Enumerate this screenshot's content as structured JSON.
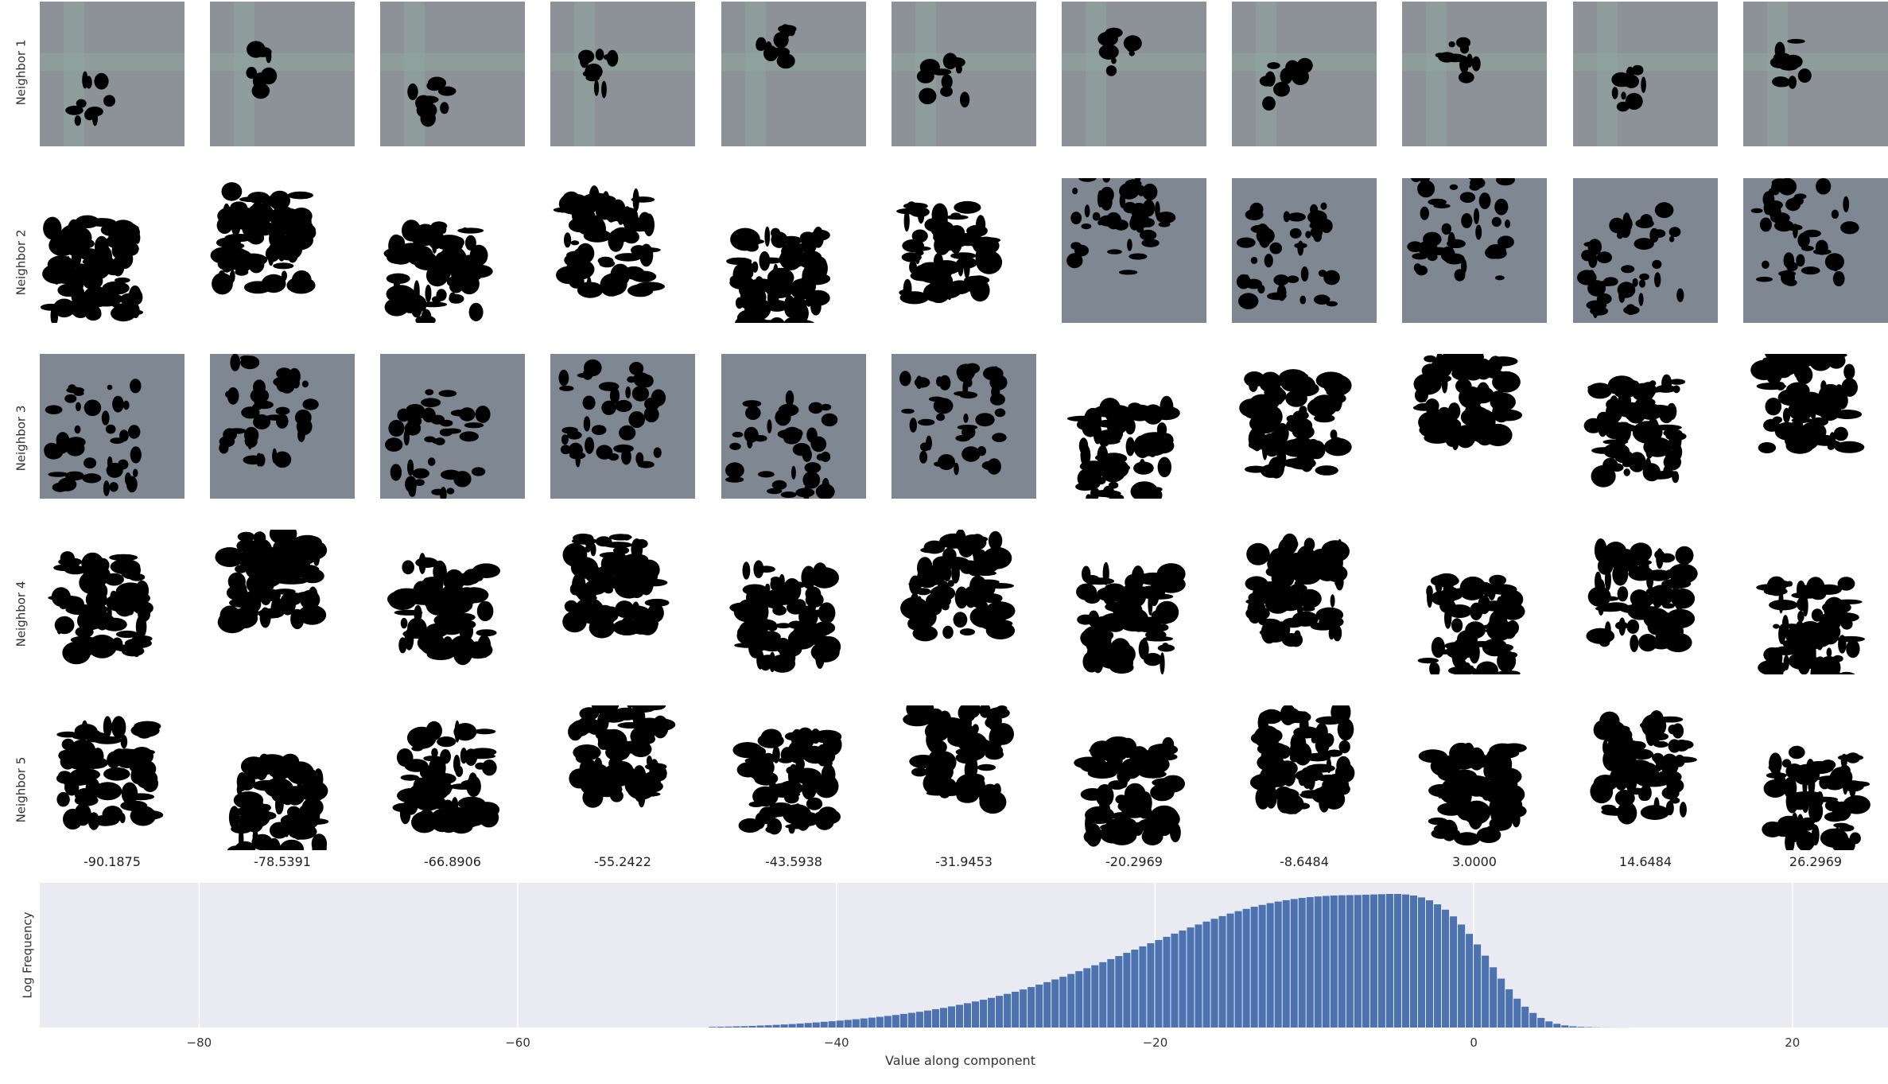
{
  "figure": {
    "row_labels": [
      "Neighbor 1",
      "Neighbor 2",
      "Neighbor 3",
      "Neighbor 4",
      "Neighbor 5"
    ],
    "column_values": [
      "-90.1875",
      "-78.5391",
      "-66.8906",
      "-55.2422",
      "-43.5938",
      "-31.9453",
      "-20.2969",
      "-8.6484",
      "3.0000",
      "14.6484",
      "26.2969"
    ],
    "tile_backgrounds": {
      "gray_road": "#8c9297",
      "gray_asphalt": "#7f8793",
      "white": "#ffffff",
      "mask": "#000000"
    },
    "tile_types": [
      [
        "road",
        "road",
        "road",
        "road",
        "road",
        "road",
        "road",
        "road",
        "road",
        "road",
        "road"
      ],
      [
        "white",
        "white",
        "white",
        "white",
        "white",
        "white",
        "asphalt",
        "asphalt",
        "asphalt",
        "asphalt",
        "asphalt"
      ],
      [
        "asphalt",
        "asphalt",
        "asphalt",
        "asphalt",
        "asphalt",
        "asphalt",
        "white",
        "white",
        "white",
        "white",
        "white"
      ],
      [
        "white",
        "white",
        "white",
        "white",
        "white",
        "white",
        "white",
        "white",
        "white",
        "white",
        "white"
      ],
      [
        "white",
        "white",
        "white",
        "white",
        "white",
        "white",
        "white",
        "white",
        "white",
        "white",
        "white"
      ]
    ]
  },
  "chart_data": {
    "type": "bar",
    "xlabel": "Value along component",
    "ylabel": "Log Frequency",
    "xlim": [
      -90,
      26
    ],
    "x_ticks": [
      "−80",
      "−60",
      "−40",
      "−20",
      "0",
      "20"
    ],
    "x_tick_values": [
      -80,
      -60,
      -40,
      -20,
      0,
      20
    ],
    "bar_color": "#4c72b0",
    "background": "#eaeaf2",
    "grid": true,
    "bins_start": -90.2,
    "bin_width": 0.5,
    "x": [
      -48,
      -47.5,
      -47,
      -46.5,
      -46,
      -45.5,
      -45,
      -44.5,
      -44,
      -43.5,
      -43,
      -42.5,
      -42,
      -41.5,
      -41,
      -40.5,
      -40,
      -39.5,
      -39,
      -38.5,
      -38,
      -37.5,
      -37,
      -36.5,
      -36,
      -35.5,
      -35,
      -34.5,
      -34,
      -33.5,
      -33,
      -32.5,
      -32,
      -31.5,
      -31,
      -30.5,
      -30,
      -29.5,
      -29,
      -28.5,
      -28,
      -27.5,
      -27,
      -26.5,
      -26,
      -25.5,
      -25,
      -24.5,
      -24,
      -23.5,
      -23,
      -22.5,
      -22,
      -21.5,
      -21,
      -20.5,
      -20,
      -19.5,
      -19,
      -18.5,
      -18,
      -17.5,
      -17,
      -16.5,
      -16,
      -15.5,
      -15,
      -14.5,
      -14,
      -13.5,
      -13,
      -12.5,
      -12,
      -11.5,
      -11,
      -10.5,
      -10,
      -9.5,
      -9,
      -8.5,
      -8,
      -7.5,
      -7,
      -6.5,
      -6,
      -5.5,
      -5,
      -4.5,
      -4,
      -3.5,
      -3,
      -2.5,
      -2,
      -1.5,
      -1,
      -0.5,
      0,
      0.5,
      1,
      1.5,
      2,
      2.5,
      3,
      3.5,
      4,
      4.5,
      5,
      5.5,
      6,
      6.5,
      7,
      7.5,
      8,
      8.5,
      9,
      9.5,
      10,
      10.5,
      11,
      11.5
    ],
    "values": [
      0.5,
      0.6,
      0.7,
      0.9,
      1,
      1.2,
      1.5,
      1.7,
      2,
      2.3,
      2.6,
      3,
      3.4,
      3.8,
      4.3,
      4.7,
      5.2,
      5.7,
      6.2,
      6.8,
      7.4,
      8,
      8.7,
      9.4,
      10.2,
      11,
      11.8,
      12.7,
      13.7,
      14.7,
      15.8,
      17,
      18.2,
      19.5,
      20.8,
      22.2,
      23.7,
      25.2,
      26.8,
      28.5,
      30.3,
      32.1,
      34,
      36,
      38,
      40.1,
      42.2,
      44.4,
      46.6,
      48.9,
      51.2,
      53.5,
      55.9,
      58.3,
      60.7,
      63.1,
      65.5,
      67.9,
      70.3,
      72.6,
      74.9,
      77.1,
      79.3,
      81.4,
      83.4,
      85.3,
      87.1,
      88.8,
      90.4,
      91.8,
      93.1,
      94.3,
      95.3,
      96.2,
      97,
      97.6,
      98.1,
      98.5,
      98.8,
      99,
      99.1,
      99.2,
      99.4,
      99.6,
      99.8,
      100,
      100,
      99.6,
      98.8,
      97.4,
      95.2,
      92.2,
      88.2,
      83.2,
      77.1,
      70.1,
      62.2,
      53.8,
      45.1,
      36.6,
      28.6,
      21.6,
      15.6,
      10.9,
      7.2,
      4.6,
      2.8,
      1.6,
      0.9,
      0.5,
      0.3,
      0.15,
      0.08,
      0.04,
      0.02,
      0.01,
      0.005,
      0.002,
      0.001,
      0.0005
    ]
  }
}
